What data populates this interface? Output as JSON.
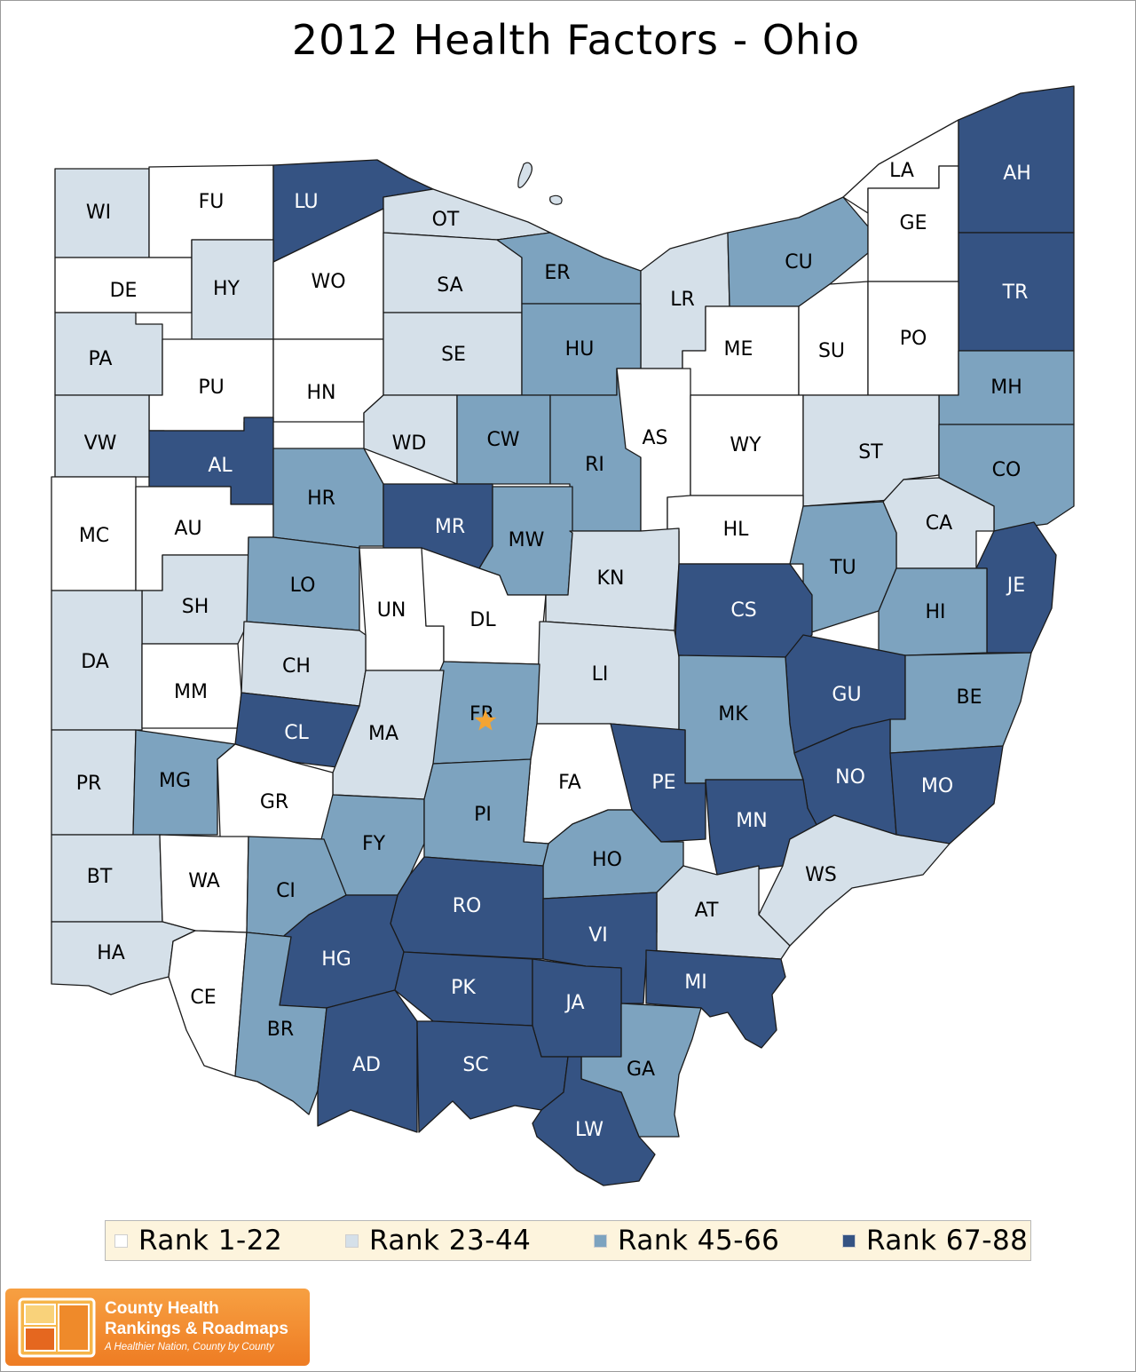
{
  "title": "2012 Health Factors - Ohio",
  "legend": [
    {
      "label": "Rank 1-22",
      "color": "#ffffff"
    },
    {
      "label": "Rank 23-44",
      "color": "#d5e0e9"
    },
    {
      "label": "Rank 45-66",
      "color": "#7da3bf"
    },
    {
      "label": "Rank 67-88",
      "color": "#355383"
    }
  ],
  "label_colors": [
    "#000000",
    "#000000",
    "#000000",
    "#ffffff"
  ],
  "counties": [
    {
      "abbr": "WI",
      "tier": 1
    },
    {
      "abbr": "FU",
      "tier": 0
    },
    {
      "abbr": "LU",
      "tier": 3
    },
    {
      "abbr": "OT",
      "tier": 1
    },
    {
      "abbr": "DE",
      "tier": 0
    },
    {
      "abbr": "HY",
      "tier": 1
    },
    {
      "abbr": "WO",
      "tier": 0
    },
    {
      "abbr": "SA",
      "tier": 1
    },
    {
      "abbr": "ER",
      "tier": 2
    },
    {
      "abbr": "LR",
      "tier": 1
    },
    {
      "abbr": "CU",
      "tier": 2
    },
    {
      "abbr": "LA",
      "tier": 0
    },
    {
      "abbr": "GE",
      "tier": 0
    },
    {
      "abbr": "AH",
      "tier": 3
    },
    {
      "abbr": "TR",
      "tier": 3
    },
    {
      "abbr": "PA",
      "tier": 1
    },
    {
      "abbr": "PU",
      "tier": 0
    },
    {
      "abbr": "HN",
      "tier": 0
    },
    {
      "abbr": "SE",
      "tier": 1
    },
    {
      "abbr": "HU",
      "tier": 2
    },
    {
      "abbr": "ME",
      "tier": 0
    },
    {
      "abbr": "SU",
      "tier": 0
    },
    {
      "abbr": "PO",
      "tier": 0
    },
    {
      "abbr": "MH",
      "tier": 2
    },
    {
      "abbr": "VW",
      "tier": 1
    },
    {
      "abbr": "AL",
      "tier": 3
    },
    {
      "abbr": "WD",
      "tier": 1
    },
    {
      "abbr": "CW",
      "tier": 2
    },
    {
      "abbr": "RI",
      "tier": 2
    },
    {
      "abbr": "AS",
      "tier": 0
    },
    {
      "abbr": "WY",
      "tier": 0
    },
    {
      "abbr": "ST",
      "tier": 1
    },
    {
      "abbr": "CO",
      "tier": 2
    },
    {
      "abbr": "MC",
      "tier": 0
    },
    {
      "abbr": "AU",
      "tier": 0
    },
    {
      "abbr": "HR",
      "tier": 2
    },
    {
      "abbr": "MR",
      "tier": 3
    },
    {
      "abbr": "MW",
      "tier": 2
    },
    {
      "abbr": "HL",
      "tier": 0
    },
    {
      "abbr": "CA",
      "tier": 1
    },
    {
      "abbr": "TU",
      "tier": 2
    },
    {
      "abbr": "JE",
      "tier": 3
    },
    {
      "abbr": "SH",
      "tier": 1
    },
    {
      "abbr": "LO",
      "tier": 2
    },
    {
      "abbr": "UN",
      "tier": 0
    },
    {
      "abbr": "DL",
      "tier": 0
    },
    {
      "abbr": "KN",
      "tier": 1
    },
    {
      "abbr": "CS",
      "tier": 3
    },
    {
      "abbr": "HI",
      "tier": 2
    },
    {
      "abbr": "DA",
      "tier": 1
    },
    {
      "abbr": "MM",
      "tier": 0
    },
    {
      "abbr": "CH",
      "tier": 1
    },
    {
      "abbr": "LI",
      "tier": 1
    },
    {
      "abbr": "GU",
      "tier": 3
    },
    {
      "abbr": "BE",
      "tier": 2
    },
    {
      "abbr": "FR",
      "tier": 2
    },
    {
      "abbr": "MK",
      "tier": 2
    },
    {
      "abbr": "CL",
      "tier": 3
    },
    {
      "abbr": "MA",
      "tier": 1
    },
    {
      "abbr": "PR",
      "tier": 1
    },
    {
      "abbr": "MG",
      "tier": 2
    },
    {
      "abbr": "GR",
      "tier": 0
    },
    {
      "abbr": "FA",
      "tier": 0
    },
    {
      "abbr": "PE",
      "tier": 3
    },
    {
      "abbr": "NO",
      "tier": 3
    },
    {
      "abbr": "MO",
      "tier": 3
    },
    {
      "abbr": "MN",
      "tier": 3
    },
    {
      "abbr": "FY",
      "tier": 2
    },
    {
      "abbr": "PI",
      "tier": 2
    },
    {
      "abbr": "BT",
      "tier": 1
    },
    {
      "abbr": "WA",
      "tier": 0
    },
    {
      "abbr": "CI",
      "tier": 2
    },
    {
      "abbr": "HO",
      "tier": 2
    },
    {
      "abbr": "WS",
      "tier": 1
    },
    {
      "abbr": "RO",
      "tier": 3
    },
    {
      "abbr": "AT",
      "tier": 1
    },
    {
      "abbr": "VI",
      "tier": 3
    },
    {
      "abbr": "HA",
      "tier": 1
    },
    {
      "abbr": "HG",
      "tier": 3
    },
    {
      "abbr": "MI",
      "tier": 3
    },
    {
      "abbr": "PK",
      "tier": 3
    },
    {
      "abbr": "JA",
      "tier": 3
    },
    {
      "abbr": "CE",
      "tier": 0
    },
    {
      "abbr": "BR",
      "tier": 2
    },
    {
      "abbr": "AD",
      "tier": 3
    },
    {
      "abbr": "SC",
      "tier": 3
    },
    {
      "abbr": "GA",
      "tier": 2
    },
    {
      "abbr": "LW",
      "tier": 3
    }
  ],
  "capital_marker": {
    "county": "FR",
    "icon": "star-icon",
    "color": "#f4a433"
  },
  "logo": {
    "line1": "County Health",
    "line2": "Rankings & Roadmaps",
    "tagline": "A Healthier Nation, County by County"
  }
}
